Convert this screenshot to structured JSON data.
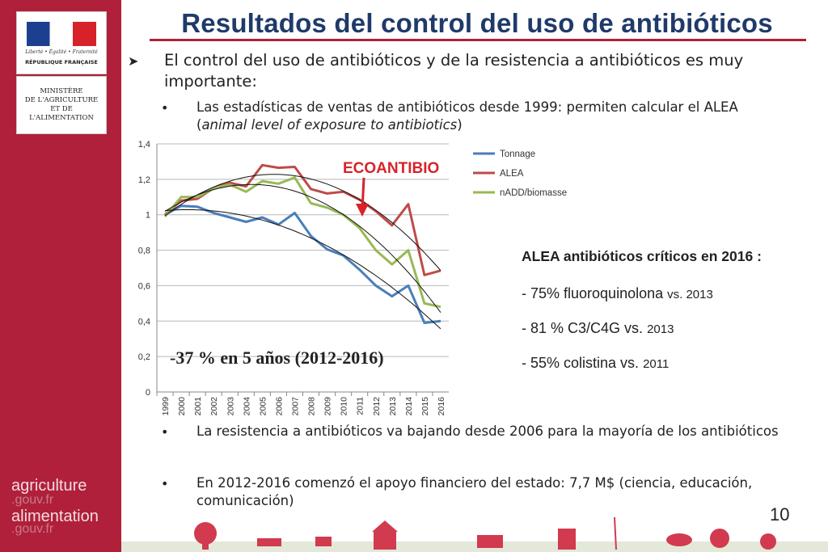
{
  "sidebar": {
    "logo_motto": "Liberté • Égalité • Fraternité",
    "logo_republic": "RÉPUBLIQUE FRANÇAISE",
    "ministry_lines": [
      "MINISTÈRE",
      "DE L'AGRICULTURE",
      "ET DE",
      "L'ALIMENTATION"
    ],
    "brand": [
      "agriculture",
      ".gouv.fr",
      "alimentation",
      ".gouv.fr"
    ]
  },
  "slide": {
    "title": "Resultados del control del uso de antibióticos",
    "point1": "El control del uso de antibióticos y de la resistencia a antibióticos es muy importante:",
    "bullet1_pre": "Las estadísticas de ventas de antibióticos desde 1999: permiten calcular el ALEA (",
    "bullet1_em": "animal level of exposure to antibiotics",
    "bullet1_post": ")",
    "bullet2": "La resistencia a antibióticos va bajando desde 2006 para la mayoría de los antibióticos",
    "bullet3": "En 2012-2016 comenzó el apoyo financiero del estado: 7,7 M$ (ciencia, educación, comunicación)",
    "page_number": "10"
  },
  "annotations": {
    "ecoantibio": "ECOANTIBIO",
    "decrease": "-37 % en 5 años (2012-2016)"
  },
  "alea_box": {
    "title": "ALEA antibióticos críticos en 2016 :",
    "items": [
      {
        "text": "- 75% fluoroquinolona  ",
        "vs": "vs. 2013"
      },
      {
        "text": "- 81 % C3/C4G vs. ",
        "vs": "2013"
      },
      {
        "text": "- 55% colistina vs. ",
        "vs": "2011"
      }
    ]
  },
  "chart_data": {
    "type": "line",
    "x": [
      "1999",
      "2000",
      "2001",
      "2002",
      "2003",
      "2004",
      "2005",
      "2006",
      "2007",
      "2008",
      "2009",
      "2010",
      "2011",
      "2012",
      "2013",
      "2014",
      "2015",
      "2016"
    ],
    "ylim": [
      0,
      1.4
    ],
    "yticks": [
      "0",
      "0,2",
      "0,4",
      "0,6",
      "0,8",
      "1",
      "1,2",
      "1,4"
    ],
    "grid": true,
    "legend_position": "top-right",
    "series": [
      {
        "name": "Tonnage",
        "color": "#4a7ebb",
        "values": [
          1.0,
          1.05,
          1.045,
          1.01,
          0.985,
          0.96,
          0.985,
          0.945,
          1.01,
          0.88,
          0.805,
          0.77,
          0.69,
          0.6,
          0.54,
          0.6,
          0.39,
          0.4
        ]
      },
      {
        "name": "ALEA",
        "color": "#be4b48",
        "values": [
          1.0,
          1.08,
          1.09,
          1.15,
          1.18,
          1.16,
          1.28,
          1.265,
          1.27,
          1.145,
          1.12,
          1.13,
          1.085,
          1.02,
          0.94,
          1.06,
          0.66,
          0.685
        ]
      },
      {
        "name": "nADD/biomasse",
        "color": "#98b954",
        "values": [
          0.99,
          1.1,
          1.1,
          1.15,
          1.17,
          1.13,
          1.19,
          1.175,
          1.21,
          1.065,
          1.04,
          1.0,
          0.925,
          0.8,
          0.72,
          0.8,
          0.5,
          0.48
        ]
      }
    ]
  }
}
